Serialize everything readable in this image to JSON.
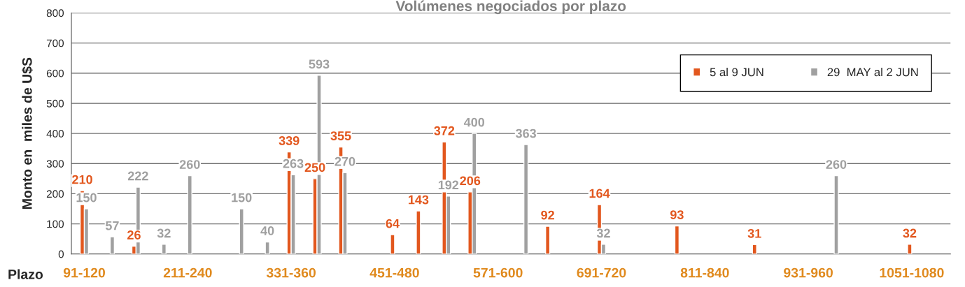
{
  "chart_data": {
    "type": "bar",
    "title": "Volúmenes negociados por plazo",
    "xlabel": "Plazo",
    "ylabel": "Monto en  miles de U$S",
    "categories": [
      "91-120",
      null,
      null,
      null,
      "211-240",
      null,
      null,
      null,
      "331-360",
      null,
      null,
      null,
      "451-480",
      null,
      null,
      null,
      "571-600",
      null,
      null,
      null,
      "691-720",
      null,
      null,
      null,
      "811-840",
      null,
      null,
      null,
      "931-960",
      null,
      null,
      null,
      "1051-1080",
      null
    ],
    "series": [
      {
        "name": "5 al 9 JUN",
        "color": "#e2571e",
        "values": [
          210,
          null,
          26,
          null,
          null,
          null,
          null,
          null,
          339,
          250,
          355,
          null,
          64,
          143,
          372,
          206,
          null,
          null,
          92,
          null,
          164,
          null,
          null,
          93,
          null,
          null,
          31,
          null,
          null,
          null,
          null,
          null,
          32,
          null
        ]
      },
      {
        "name": "29  MAY al 2 JUN",
        "color": "#a0a0a0",
        "values": [
          150,
          57,
          222,
          32,
          260,
          null,
          150,
          40,
          263,
          593,
          270,
          null,
          null,
          null,
          192,
          400,
          null,
          363,
          null,
          null,
          32,
          null,
          null,
          null,
          null,
          null,
          null,
          null,
          null,
          260,
          null,
          null,
          null,
          null
        ]
      }
    ],
    "ylim": [
      0,
      800
    ],
    "yticks": [
      0,
      100,
      200,
      300,
      400,
      500,
      600,
      700,
      800
    ],
    "grid": "y",
    "legend": "top right",
    "data_labels": true
  }
}
